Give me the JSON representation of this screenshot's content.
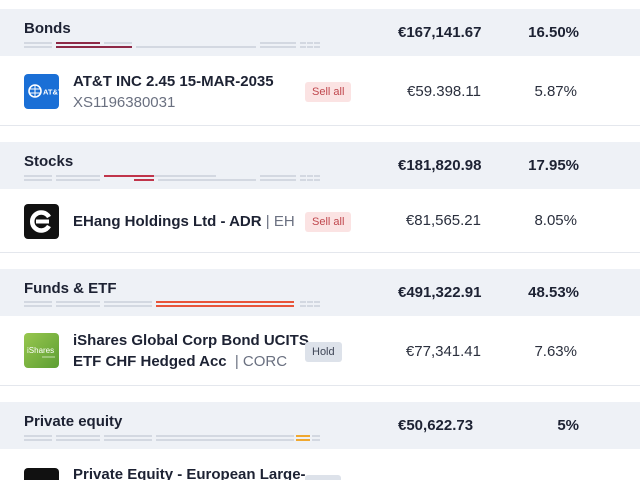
{
  "sections": [
    {
      "title": "Bonds",
      "amount": "€167,141.67",
      "pct": "16.50%",
      "accent": "#8e2947",
      "holding": {
        "name": "AT&T INC 2.45 15-MAR-2035",
        "sub": "XS1196380031",
        "ticker": "",
        "badge": "Sell all",
        "badge_kind": "sell",
        "amount": "€59.398.11",
        "pct": "5.87%",
        "logo_icon": "att-globe-icon",
        "logo_text": "AT&T",
        "logo_color": "#1a6fd6"
      }
    },
    {
      "title": "Stocks",
      "amount": "€181,820.98",
      "pct": "17.95%",
      "accent": "#c0344a",
      "holding": {
        "name": "EHang Holdings Ltd - ADR",
        "sub": "",
        "ticker": "| EH",
        "badge": "Sell all",
        "badge_kind": "sell",
        "amount": "€81,565.21",
        "pct": "8.05%",
        "logo_icon": "ehang-e-icon",
        "logo_text": "",
        "logo_color": "#111111"
      }
    },
    {
      "title": "Funds & ETF",
      "amount": "€491,322.91",
      "pct": "48.53%",
      "accent": "#e8553a",
      "holding": {
        "name": "iShares Global Corp Bond UCITS",
        "name2": "ETF CHF Hedged Acc",
        "sub": "",
        "ticker": "| CORC",
        "badge": "Hold",
        "badge_kind": "hold",
        "amount": "€77,341.41",
        "pct": "7.63%",
        "logo_icon": "ishares-icon",
        "logo_text": "iShares",
        "logo_color": "#7ab648"
      }
    },
    {
      "title": "Private equity",
      "amount": "€50,622.73",
      "pct": "5%",
      "accent": "#f0a830",
      "holding": {
        "name": "Private Equity - European Large-",
        "logo_icon": "private-equity-icon",
        "logo_color": "#111111"
      }
    }
  ]
}
